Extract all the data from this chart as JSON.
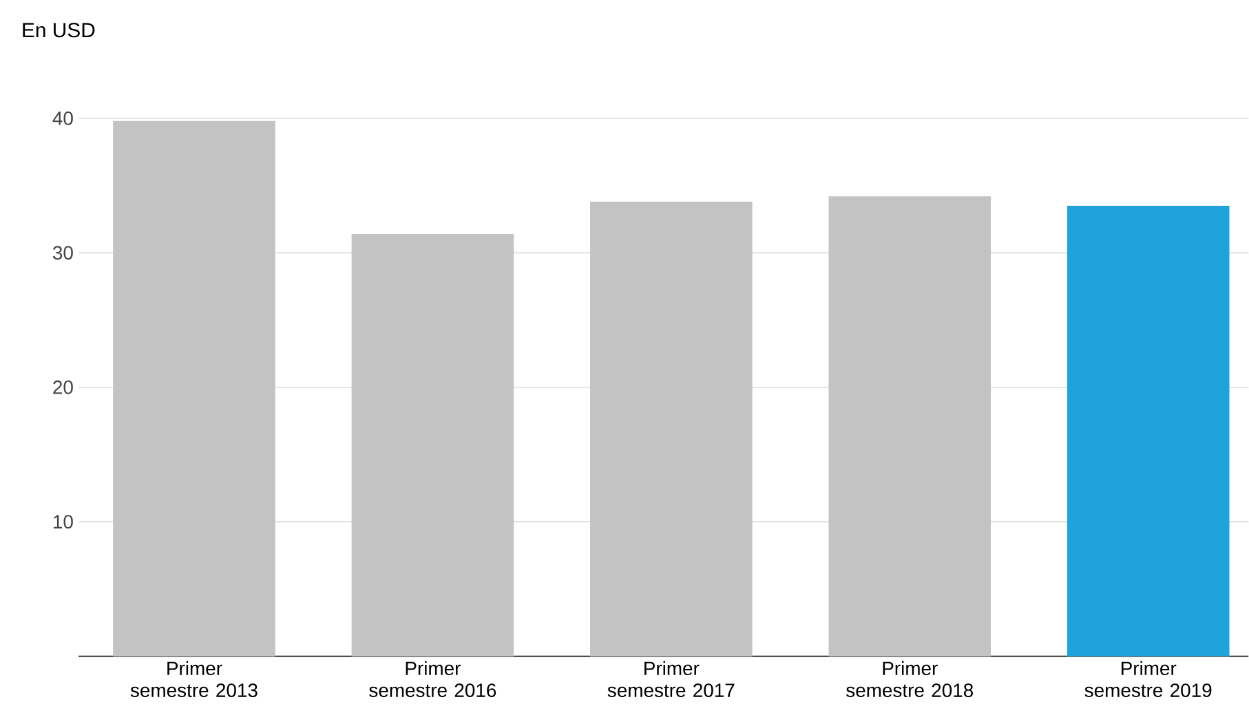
{
  "chart_data": {
    "type": "bar",
    "ylabel": "En USD",
    "categories": [
      "Primer semestre 2013",
      "Primer semestre 2016",
      "Primer semestre 2017",
      "Primer semestre 2018",
      "Primer semestre 2019"
    ],
    "values": [
      39.8,
      31.4,
      33.8,
      34.2,
      33.5
    ],
    "colors": [
      "#c3c3c3",
      "#c3c3c3",
      "#c3c3c3",
      "#c3c3c3",
      "#1fa3dc"
    ],
    "ylim": [
      0,
      40
    ],
    "yticks": [
      10,
      20,
      30,
      40
    ],
    "grid": "y"
  }
}
